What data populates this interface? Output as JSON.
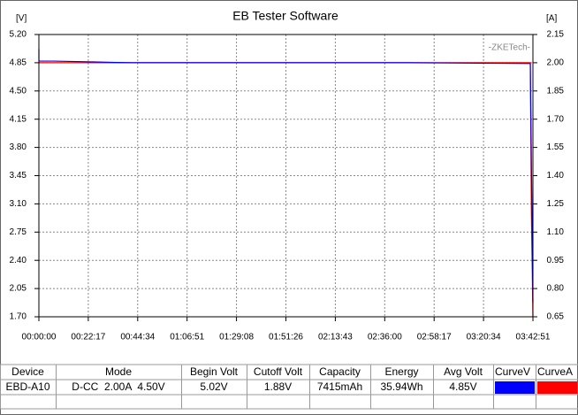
{
  "chart_data": {
    "type": "line",
    "title": "EB Tester Software",
    "ylabel": "[V]",
    "y2label": "[A]",
    "annotation": "-ZKETech-",
    "xlim": [
      0,
      13371
    ],
    "xticks": [
      {
        "value": 0,
        "label": "00:00:00"
      },
      {
        "value": 1337,
        "label": "00:22:17"
      },
      {
        "value": 2674,
        "label": "00:44:34"
      },
      {
        "value": 4011,
        "label": "01:06:51"
      },
      {
        "value": 5348,
        "label": "01:29:08"
      },
      {
        "value": 6686,
        "label": "01:51:26"
      },
      {
        "value": 8023,
        "label": "02:13:43"
      },
      {
        "value": 9360,
        "label": "02:36:00"
      },
      {
        "value": 10697,
        "label": "02:58:17"
      },
      {
        "value": 12034,
        "label": "03:20:34"
      },
      {
        "value": 13371,
        "label": "03:42:51"
      }
    ],
    "ylim": [
      1.7,
      5.2
    ],
    "yticks": [
      {
        "value": 1.7,
        "label": "1.70"
      },
      2.05,
      {
        "value": 2.4,
        "label": "2.40"
      },
      2.75,
      {
        "value": 3.1,
        "label": "3.10"
      },
      3.45,
      {
        "value": 3.8,
        "label": "3.80"
      },
      4.15,
      {
        "value": 4.5,
        "label": "4.50"
      },
      4.85,
      {
        "value": 5.2,
        "label": "5.20"
      }
    ],
    "y2lim": [
      0.65,
      2.15
    ],
    "y2ticks": [
      0.65,
      {
        "value": 0.8,
        "label": "0.80"
      },
      0.95,
      {
        "value": 1.1,
        "label": "1.10"
      },
      1.25,
      {
        "value": 1.4,
        "label": "1.40"
      },
      1.55,
      {
        "value": 1.7,
        "label": "1.70"
      },
      1.85,
      {
        "value": 2,
        "label": "2.00"
      },
      2.15
    ],
    "grid": true,
    "series": [
      {
        "name": "CurveV",
        "color": "#0000ff",
        "axis": "y",
        "x": [
          0,
          1,
          20,
          400,
          1500,
          2500,
          6000,
          10000,
          13300,
          13371
        ],
        "values": [
          5.02,
          4.87,
          4.87,
          4.87,
          4.86,
          4.85,
          4.85,
          4.85,
          4.84,
          1.88
        ]
      },
      {
        "name": "CurveA",
        "color": "#ff0000",
        "axis": "y2",
        "x": [
          0,
          13300,
          13330,
          13371
        ],
        "values": [
          2,
          2,
          1.2,
          0.65
        ]
      }
    ]
  },
  "table": {
    "columns": [
      "Device",
      "Mode",
      "Begin Volt",
      "Cutoff Volt",
      "Capacity",
      "Energy",
      "Avg Volt",
      "CurveV",
      "CurveA"
    ],
    "rows": [
      [
        "EBD-A10",
        "D-CC  2.00A  4.50V",
        "5.02V",
        "1.88V",
        "7415mAh",
        "35.94Wh",
        "4.85V"
      ]
    ]
  }
}
